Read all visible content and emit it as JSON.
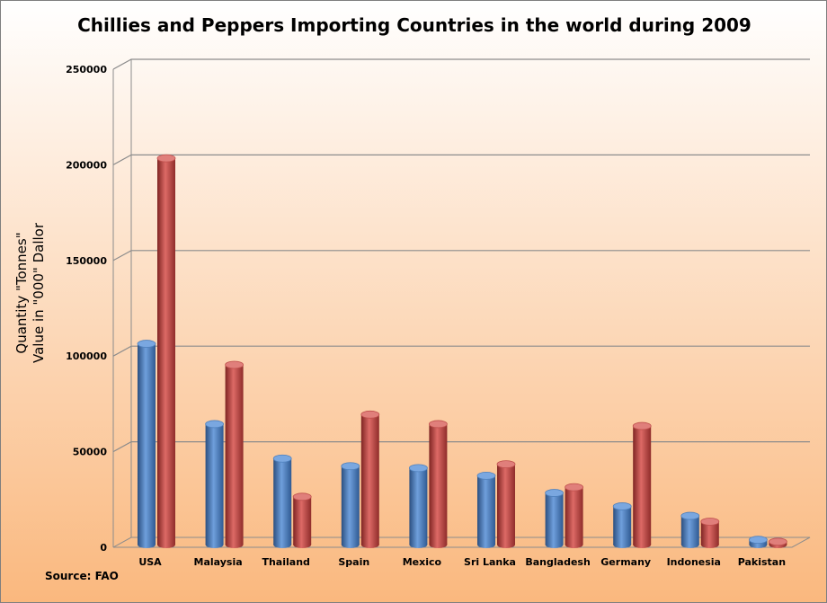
{
  "colors": {
    "bg_top": "#ffffff",
    "bg_bottom": "#fab87e",
    "series_blue": "#4f81bd",
    "series_red": "#c0504d",
    "grid": "#8c8c8c"
  },
  "chart_data": {
    "type": "bar",
    "title": "Chillies and Peppers Importing Countries in the world during 2009",
    "ylabel_lines": [
      "Quantity \"Tonnes\"",
      "Value in \"000\" Dallor"
    ],
    "xlabel": "",
    "source": "Source: FAO",
    "ylim": [
      0,
      250000
    ],
    "yticks": [
      0,
      50000,
      100000,
      150000,
      200000,
      250000
    ],
    "tick_labels": [
      "0",
      "50000",
      "100000",
      "150000",
      "200000",
      "250000"
    ],
    "grid": true,
    "legend": "none",
    "categories": [
      "USA",
      "Malaysia",
      "Thailand",
      "Spain",
      "Mexico",
      "Sri Lanka",
      "Bangladesh",
      "Germany",
      "Indonesia",
      "Pakistan"
    ],
    "series": [
      {
        "color": "#4f81bd",
        "values": [
          105000,
          63000,
          45000,
          41000,
          40000,
          36000,
          27000,
          20000,
          15000,
          2500
        ]
      },
      {
        "color": "#c0504d",
        "values": [
          202000,
          94000,
          25000,
          68000,
          63000,
          42000,
          30000,
          62000,
          12000,
          1500
        ]
      }
    ]
  }
}
